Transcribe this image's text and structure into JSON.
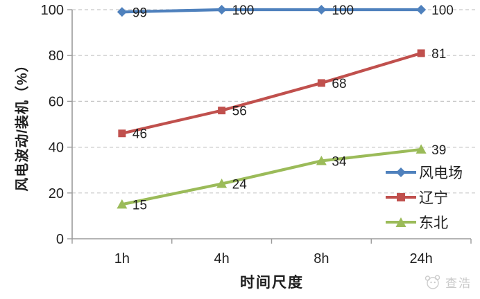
{
  "chart_data": {
    "type": "line",
    "categories": [
      "1h",
      "4h",
      "8h",
      "24h"
    ],
    "series": [
      {
        "name": "风电场",
        "values": [
          99,
          100,
          100,
          100
        ],
        "color": "#4f81bd",
        "marker": "diamond"
      },
      {
        "name": "辽宁",
        "values": [
          46,
          56,
          68,
          81
        ],
        "color": "#c0504d",
        "marker": "square"
      },
      {
        "name": "东北",
        "values": [
          15,
          24,
          34,
          39
        ],
        "color": "#9bbb59",
        "marker": "triangle"
      }
    ],
    "xlabel": "时间尺度",
    "ylabel": "风电波动/装机（%）",
    "ylim": [
      0,
      100
    ],
    "yticks": [
      0,
      20,
      40,
      60,
      80,
      100
    ],
    "grid": "horizontal-dashed",
    "legend_position": "middle-right",
    "data_labels": "right-of-marker"
  },
  "watermark": {
    "text": "查浩",
    "icon": "doodle-face-icon"
  },
  "colors": {
    "background": "#ffffff",
    "grid": "#c6c6c6",
    "axis": "#9b9b9b",
    "text": "#1f1f1f",
    "watermark": "#cdcdcd"
  }
}
